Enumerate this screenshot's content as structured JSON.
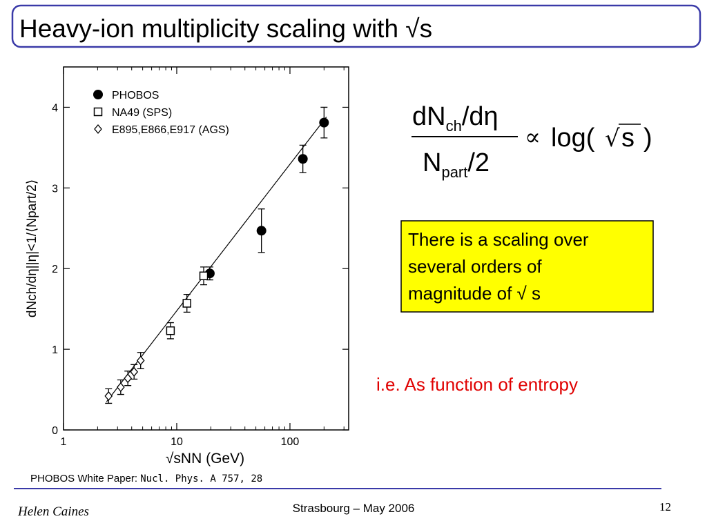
{
  "slide": {
    "title": "Heavy-ion multiplicity scaling with √s",
    "formula": {
      "num_main": "dN",
      "num_sub": "ch",
      "num_tail": "/dη",
      "den_main": "N",
      "den_sub": "part",
      "den_tail": "/2",
      "prop": "∝",
      "log": "log(",
      "root": "√",
      "arg": "s",
      "close": ")"
    },
    "box_lines": [
      "There is a scaling over",
      "several orders of",
      "magnitude of √ s"
    ],
    "note": "i.e. As function of entropy",
    "citation": [
      "PHOBOS White Paper:",
      "Nucl.  Phys. A 757, 28"
    ],
    "author": "Helen Caines",
    "venue": "Strasbourg  –  May 2006",
    "page": "12"
  },
  "chart_data": {
    "type": "scatter",
    "xlabel": "√sNN (GeV)",
    "ylabel": "dNch/dη||η|<1/⟨Npart/2⟩",
    "xlog": true,
    "xlim": [
      1,
      330
    ],
    "ylim": [
      0,
      4.5
    ],
    "xticks": [
      1,
      10,
      100
    ],
    "xminorticks": [
      2,
      3,
      4,
      5,
      6,
      7,
      8,
      9,
      20,
      30,
      40,
      50,
      60,
      70,
      80,
      90,
      200,
      300
    ],
    "yticks": [
      0,
      1,
      2,
      3,
      4
    ],
    "legend": "upper left",
    "series": [
      {
        "name": "PHOBOS",
        "color": "#000000",
        "marker": "circle",
        "x": [
          19.6,
          56,
          130,
          200
        ],
        "values": [
          1.94,
          2.47,
          3.36,
          3.81
        ],
        "errors": [
          0.08,
          0.27,
          0.17,
          0.19
        ]
      },
      {
        "name": "NA49 (SPS)",
        "color": "#000000",
        "marker": "square",
        "x": [
          8.8,
          12.3,
          17.3
        ],
        "values": [
          1.23,
          1.57,
          1.91
        ],
        "errors": [
          0.1,
          0.11,
          0.11
        ]
      },
      {
        "name": "E895,E866,E917 (AGS)",
        "color": "#000000",
        "marker": "diamond",
        "x": [
          2.5,
          3.2,
          3.7,
          4.2,
          4.8
        ],
        "values": [
          0.42,
          0.53,
          0.64,
          0.72,
          0.86
        ],
        "errors": [
          0.09,
          0.09,
          0.09,
          0.09,
          0.1
        ]
      }
    ],
    "fit": {
      "color": "#000000",
      "x": [
        2.4,
        210
      ],
      "values": [
        0.35,
        3.88
      ]
    }
  }
}
